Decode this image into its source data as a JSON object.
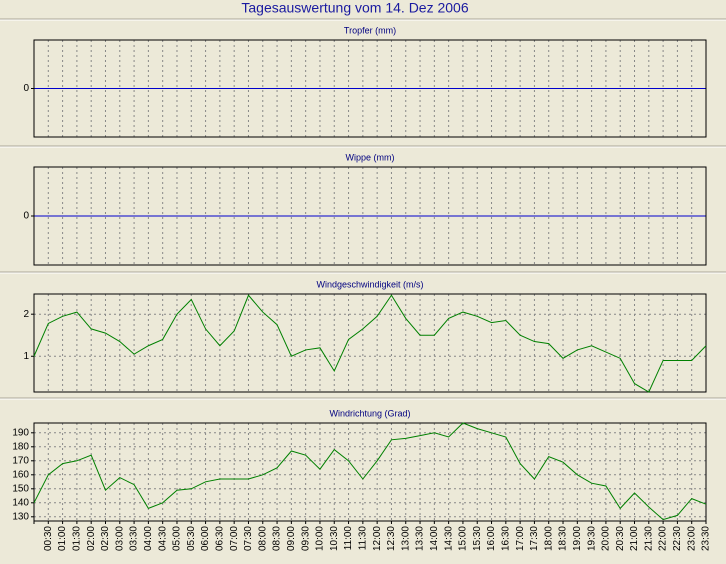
{
  "title": "Tagesauswertung vom 14. Dez 2006",
  "chart_data": [
    {
      "type": "line",
      "title": "Tropfer (mm)",
      "ylim": [
        -1,
        1
      ],
      "yticks": [
        0
      ],
      "color": "#0000cc",
      "series": []
    },
    {
      "type": "line",
      "title": "Wippe (mm)",
      "ylim": [
        -1,
        1
      ],
      "yticks": [
        0
      ],
      "color": "#0000cc",
      "series": []
    },
    {
      "type": "line",
      "title": "Windgeschwindigkeit (m/s)",
      "ylim": [
        0.15,
        2.48
      ],
      "yticks": [
        1,
        2
      ],
      "grid": true,
      "series": [
        {
          "color": "#008000",
          "values": [
            1.0,
            1.78,
            1.95,
            2.05,
            1.65,
            1.55,
            1.35,
            1.05,
            1.25,
            1.4,
            2.0,
            2.35,
            1.65,
            1.25,
            1.6,
            2.45,
            2.05,
            1.75,
            1.0,
            1.15,
            1.2,
            0.65,
            1.4,
            1.65,
            1.95,
            2.45,
            1.9,
            1.5,
            1.5,
            1.9,
            2.05,
            1.95,
            1.8,
            1.85,
            1.5,
            1.35,
            1.3,
            0.95,
            1.15,
            1.25,
            1.1,
            0.95,
            0.35,
            0.15,
            0.9,
            0.9,
            0.9,
            1.25
          ]
        }
      ]
    },
    {
      "type": "line",
      "title": "Windrichtung (Grad)",
      "ylim": [
        127,
        197
      ],
      "yticks": [
        130,
        140,
        150,
        160,
        170,
        180,
        190
      ],
      "grid": true,
      "categories": [
        null,
        "00:30",
        "01:00",
        "01:30",
        "02:00",
        "02:30",
        "03:00",
        "03:30",
        "04:00",
        "04:30",
        "05:00",
        "05:30",
        "06:00",
        "06:30",
        "07:00",
        "07:30",
        "08:00",
        "08:30",
        "09:00",
        "09:30",
        "10:00",
        "10:30",
        "11:00",
        "11:30",
        "12:00",
        "12:30",
        "13:00",
        "13:30",
        "14:00",
        "14:30",
        "15:00",
        "15:30",
        "16:00",
        "16:30",
        "17:00",
        "17:30",
        "18:00",
        "18:30",
        "19:00",
        "19:30",
        "20:00",
        "20:30",
        "21:00",
        "21:30",
        "22:00",
        "22:30",
        "23:00",
        "23:30"
      ],
      "series": [
        {
          "color": "#008000",
          "values": [
            140,
            160,
            168,
            170,
            174,
            149,
            158,
            153,
            136,
            140,
            149,
            150,
            155,
            157,
            157,
            157,
            160,
            165,
            177,
            174,
            164,
            178,
            170,
            157,
            170,
            185,
            186,
            188,
            190,
            187,
            197,
            193,
            190,
            187,
            168,
            157,
            173,
            169,
            160,
            154,
            152,
            136,
            147,
            137,
            128,
            131,
            143,
            139
          ]
        }
      ]
    }
  ]
}
